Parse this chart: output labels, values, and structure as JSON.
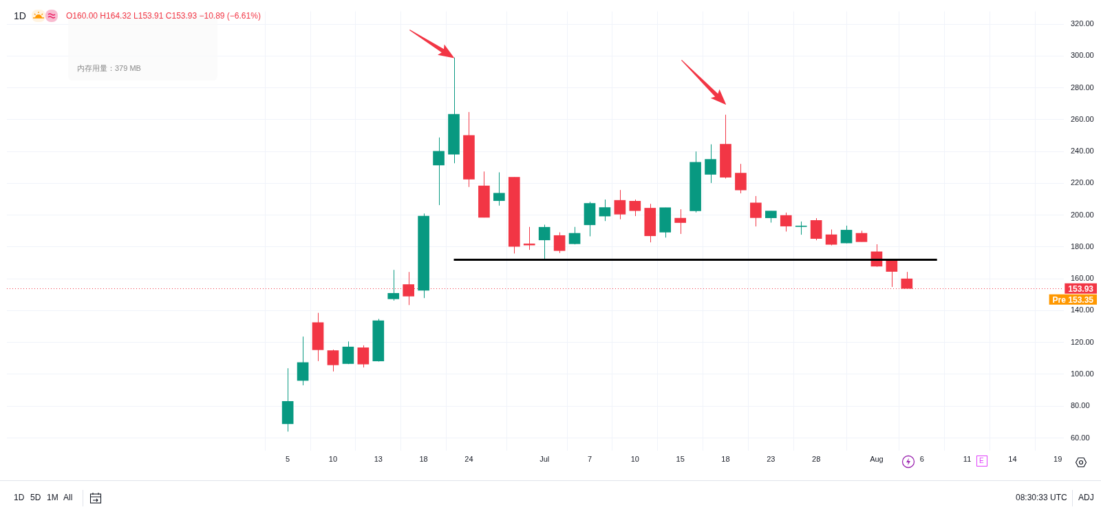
{
  "chart_data": {
    "type": "candlestick",
    "title": "1D",
    "annotations": [
      "O160.00 H164.32 L153.91 C153.93 −10.89 (−6.61%)",
      "内存用量：379 MB",
      "1D",
      "5D",
      "1M",
      "All",
      "08:30:33 UTC",
      "ADJ",
      "E",
      "Pre 153.35"
    ],
    "categories": [
      "5",
      null,
      null,
      "10",
      null,
      null,
      "13",
      null,
      null,
      "18",
      null,
      null,
      "24",
      null,
      null,
      null,
      null,
      "Jul",
      null,
      null,
      "7",
      null,
      null,
      "10",
      null,
      null,
      "15",
      null,
      null,
      "18",
      null,
      null,
      "23",
      null,
      null,
      "28",
      null,
      null,
      null,
      "Aug",
      null,
      null,
      "6",
      null,
      null,
      "11",
      null,
      null,
      "14",
      null,
      null,
      "19"
    ],
    "ohlc": [
      [
        68.9,
        103.8,
        64.0,
        83.0
      ],
      [
        96.1,
        123.7,
        93.1,
        107.4
      ],
      [
        132.5,
        138.6,
        108.3,
        115.4
      ],
      [
        114.9,
        115.5,
        101.8,
        105.9
      ],
      [
        106.7,
        120.6,
        106.4,
        117.2
      ],
      [
        116.7,
        118.2,
        104.3,
        106.4
      ],
      [
        108.3,
        134.8,
        108.0,
        133.7
      ],
      [
        147.4,
        165.6,
        146.3,
        150.9
      ],
      [
        156.4,
        164.3,
        143.5,
        149.1
      ],
      [
        152.8,
        201.0,
        147.9,
        199.4
      ],
      [
        231.5,
        248.8,
        206.3,
        240.1
      ],
      [
        238.3,
        299.0,
        232.6,
        263.4
      ],
      [
        250.1,
        264.8,
        217.7,
        222.6
      ],
      [
        218.4,
        227.4,
        198.5,
        198.6
      ],
      [
        209.1,
        226.9,
        206.0,
        213.8
      ],
      [
        223.8,
        223.8,
        175.9,
        180.3
      ],
      [
        182.0,
        192.6,
        178.2,
        181.2
      ],
      [
        184.4,
        194.0,
        171.8,
        192.4
      ],
      [
        187.2,
        189.2,
        176.2,
        177.7
      ],
      [
        182.0,
        192.6,
        181.6,
        188.6
      ],
      [
        193.9,
        208.4,
        186.7,
        207.4
      ],
      [
        199.4,
        209.8,
        196.3,
        204.8
      ],
      [
        209.3,
        215.8,
        197.4,
        200.6
      ],
      [
        208.8,
        209.8,
        199.4,
        202.8
      ],
      [
        204.4,
        207.1,
        182.9,
        187.0
      ],
      [
        189.3,
        204.7,
        185.9,
        204.7
      ],
      [
        198.1,
        203.7,
        188.2,
        195.3
      ],
      [
        202.7,
        240.0,
        201.7,
        233.2
      ],
      [
        225.6,
        244.5,
        220.2,
        235.1
      ],
      [
        244.6,
        263.1,
        223.0,
        223.8
      ],
      [
        226.4,
        232.2,
        213.7,
        215.8
      ],
      [
        207.7,
        212.0,
        192.9,
        198.4
      ],
      [
        198.3,
        202.6,
        195.3,
        202.6
      ],
      [
        199.8,
        201.6,
        189.7,
        193.1
      ],
      [
        192.8,
        196.0,
        187.7,
        193.0
      ],
      [
        196.7,
        198.1,
        184.2,
        185.3
      ],
      [
        187.7,
        191.0,
        181.0,
        181.6
      ],
      [
        182.5,
        193.4,
        182.3,
        190.6
      ],
      [
        188.6,
        190.2,
        183.3,
        183.3
      ],
      [
        177.0,
        181.7,
        167.6,
        167.9
      ],
      [
        172.3,
        172.3,
        154.9,
        164.6
      ],
      [
        160.0,
        164.32,
        153.91,
        153.93
      ],
      null,
      null,
      null,
      null,
      null,
      null,
      null,
      null,
      null,
      null
    ],
    "colors": [
      "#089981",
      "#089981",
      "#f23645",
      "#f23645",
      "#089981",
      "#f23645",
      "#089981",
      "#089981",
      "#f23645",
      "#089981",
      "#089981",
      "#089981",
      "#f23645",
      "#f23645",
      "#089981",
      "#f23645",
      "#f23645",
      "#089981",
      "#f23645",
      "#089981",
      "#089981",
      "#089981",
      "#f23645",
      "#f23645",
      "#f23645",
      "#089981",
      "#f23645",
      "#089981",
      "#089981",
      "#f23645",
      "#f23645",
      "#f23645",
      "#089981",
      "#f23645",
      "#089981",
      "#f23645",
      "#f23645",
      "#089981",
      "#f23645",
      "#f23645",
      "#f23645",
      "#f23645",
      null,
      null,
      null,
      null,
      null,
      null,
      null,
      null,
      null,
      null
    ],
    "series": [
      {
        "type": "line",
        "color": "#000000",
        "values": [
          null,
          null,
          null,
          null,
          null,
          null,
          null,
          null,
          null,
          null,
          null,
          172,
          172,
          172,
          172,
          172,
          172,
          172,
          172,
          172,
          172,
          172,
          172,
          172,
          172,
          172,
          172,
          172,
          172,
          172,
          172,
          172,
          172,
          172,
          172,
          172,
          172,
          172,
          172,
          172,
          172,
          172,
          172,
          172,
          null,
          null,
          null,
          null,
          null,
          null,
          null,
          null
        ]
      }
    ],
    "ref_lines": [
      {
        "axis": "y",
        "value": 153.93,
        "label": "153.93",
        "color": "#f23645",
        "line_style": "dotted"
      }
    ],
    "ylim": [
      52,
      328
    ],
    "yticks": [
      {
        "value": 60,
        "label": "60.00"
      },
      {
        "value": 80,
        "label": "80.00"
      },
      {
        "value": 100,
        "label": "100.00"
      },
      {
        "value": 120,
        "label": "120.00"
      },
      {
        "value": 140,
        "label": "140.00"
      },
      {
        "value": 160,
        "label": "160.00"
      },
      {
        "value": 180,
        "label": "180.00"
      },
      {
        "value": 200,
        "label": "200.00"
      },
      {
        "value": 220,
        "label": "220.00"
      },
      {
        "value": 240,
        "label": "240.00"
      },
      {
        "value": 260,
        "label": "260.00"
      },
      {
        "value": 280,
        "label": "280.00"
      },
      {
        "value": 300,
        "label": "300.00"
      },
      {
        "value": 320,
        "label": "320.00"
      }
    ],
    "grid": true
  }
}
